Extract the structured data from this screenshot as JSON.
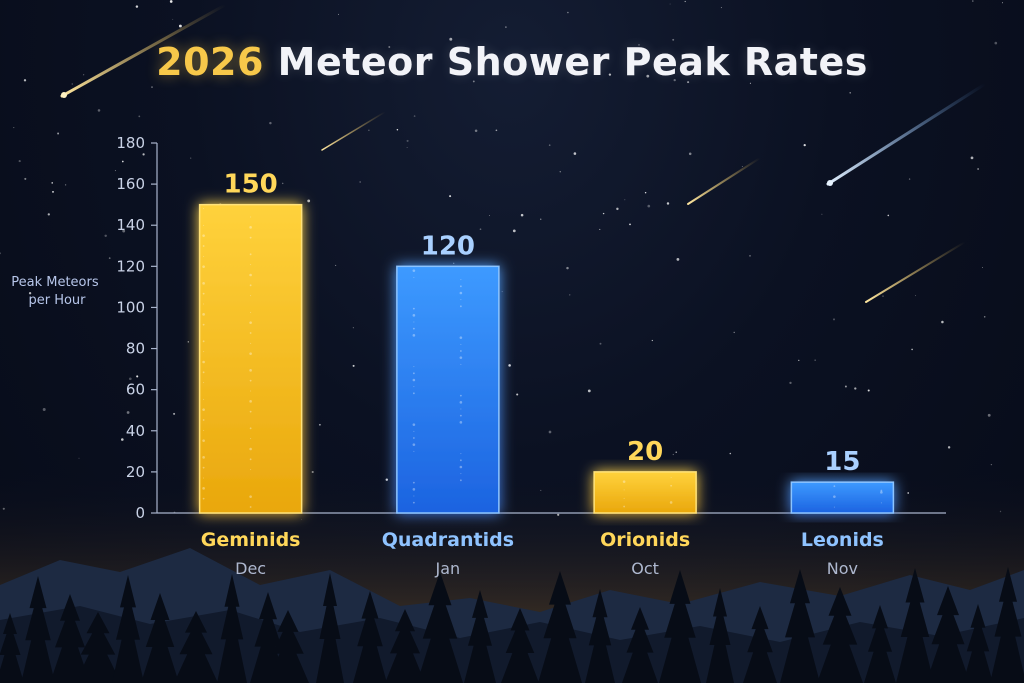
{
  "page": {
    "title_accent": "2026",
    "title_rest": "Meteor Shower Peak Rates"
  },
  "colors": {
    "gold": "#f5be1e",
    "blue": "#2f8bff",
    "background": "#0b1122"
  },
  "chart_data": {
    "type": "bar",
    "title": "2026 Meteor Shower Peak Rates",
    "ylabel": "Peak Meteors per Hour",
    "ylabel_lines": [
      "Peak Meteors",
      "per Hour"
    ],
    "ylim": [
      0,
      180
    ],
    "yticks": [
      0,
      20,
      40,
      60,
      80,
      100,
      120,
      140,
      160,
      180
    ],
    "grid": false,
    "legend": "none",
    "categories": [
      "Geminids",
      "Quadrantids",
      "Orionids",
      "Leonids"
    ],
    "months": [
      "Dec",
      "Jan",
      "Oct",
      "Nov"
    ],
    "values": [
      150,
      120,
      20,
      15
    ],
    "bar_colors": [
      "gold",
      "blue",
      "gold",
      "blue"
    ]
  }
}
